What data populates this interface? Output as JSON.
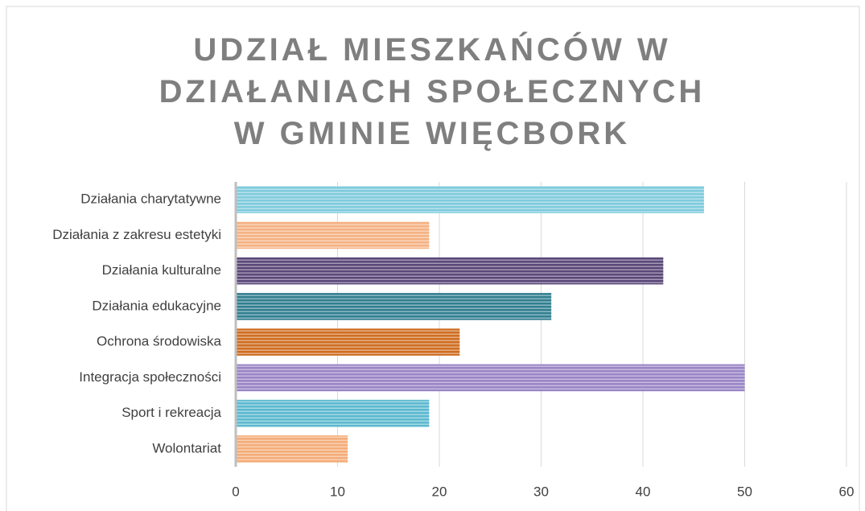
{
  "chart_data": {
    "type": "bar",
    "orientation": "horizontal",
    "title": "UDZIAŁ MIESZKAŃCÓW W DZIAŁANIACH SPOŁECZNYCH W GMINIE WIĘCBORK",
    "categories": [
      "Działania charytatywne",
      "Działania z zakresu estetyki",
      "Działania kulturalne",
      "Działania edukacyjne",
      "Ochrona środowiska",
      "Integracja społeczności",
      "Sport i rekreacja",
      "Wolontariat"
    ],
    "values": [
      46,
      19,
      42,
      31,
      22,
      50,
      19,
      11
    ],
    "colors": [
      "#7fcbdc",
      "#f5b283",
      "#5a4878",
      "#327f91",
      "#cf6e22",
      "#9a85c6",
      "#5cb9cf",
      "#f4ac78"
    ],
    "xlim": [
      0,
      60
    ],
    "xticks": [
      0,
      10,
      20,
      30,
      40,
      50,
      60
    ],
    "grid": true
  }
}
